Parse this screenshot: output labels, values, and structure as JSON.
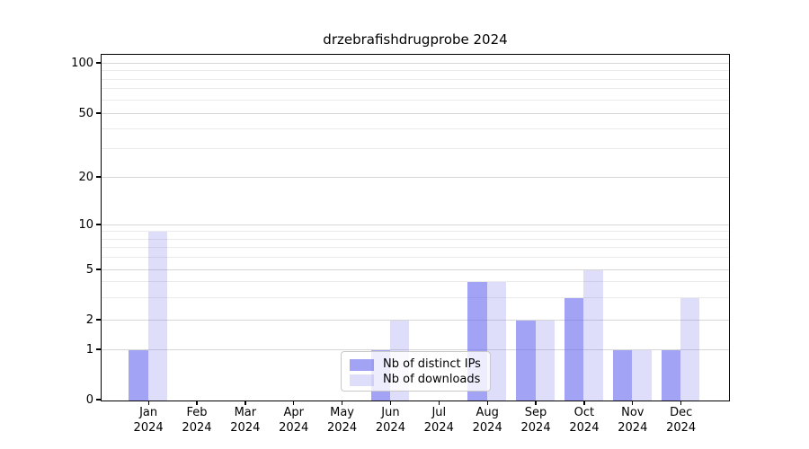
{
  "chart_data": {
    "type": "bar",
    "title": "drzebrafishdrugprobe 2024",
    "categories": [
      "Jan",
      "Feb",
      "Mar",
      "Apr",
      "May",
      "Jun",
      "Jul",
      "Aug",
      "Sep",
      "Oct",
      "Nov",
      "Dec"
    ],
    "category_year": "2024",
    "series": [
      {
        "name": "Nb of distinct IPs",
        "color": "rgba(107,107,239,0.62)",
        "values": [
          1,
          0,
          0,
          0,
          0,
          1,
          0,
          4,
          2,
          3,
          1,
          1
        ]
      },
      {
        "name": "Nb of downloads",
        "color": "rgba(107,107,239,0.22)",
        "values": [
          9,
          0,
          0,
          0,
          0,
          2,
          0,
          4,
          2,
          5,
          1,
          3
        ]
      }
    ],
    "xlabel": "",
    "ylabel": "",
    "yscale": "symlog",
    "ylim": [
      0,
      112
    ],
    "y_ticks": [
      0,
      1,
      2,
      5,
      10,
      20,
      50,
      100
    ],
    "y_minor_gridlines": [
      3,
      4,
      6,
      7,
      8,
      9,
      30,
      40,
      60,
      70,
      80,
      90
    ],
    "grid": true,
    "legend_position": "lower center"
  },
  "colors": {
    "bar_distinct_ips": "rgba(107,107,239,0.62)",
    "bar_downloads": "rgba(107,107,239,0.22)",
    "grid_major": "#d6d6d6",
    "grid_minor": "#ebebeb",
    "axis": "#000000",
    "legend_border": "#c9c9c9",
    "legend_bg": "rgba(255,255,255,0.8)"
  }
}
